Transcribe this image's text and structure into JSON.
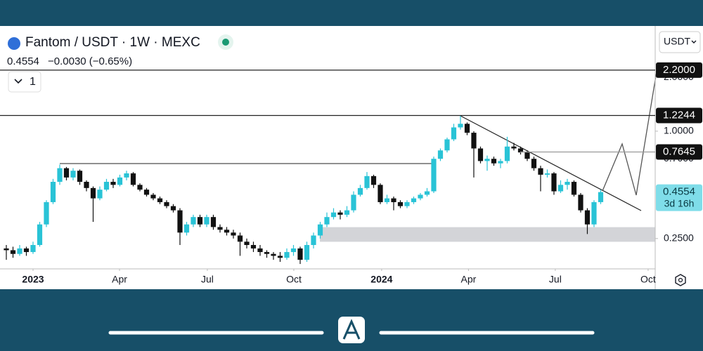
{
  "header": {
    "title": "Fantom / USDT · 1W · MEXC",
    "last": "0.4554",
    "change": "−0.0030 (−0.65%)",
    "button": "1",
    "currency": "USDT"
  },
  "chart_data": {
    "type": "candlestick",
    "open": [
      0.22,
      0.215,
      0.205,
      0.22,
      0.21,
      0.23,
      0.3,
      0.4,
      0.52,
      0.62,
      0.55,
      0.6,
      0.52,
      0.48,
      0.42,
      0.47,
      0.52,
      0.5,
      0.55,
      0.58,
      0.5,
      0.47,
      0.44,
      0.42,
      0.4,
      0.38,
      0.36,
      0.27,
      0.3,
      0.33,
      0.3,
      0.33,
      0.29,
      0.28,
      0.27,
      0.26,
      0.24,
      0.23,
      0.22,
      0.21,
      0.205,
      0.2,
      0.195,
      0.21,
      0.22,
      0.19,
      0.23,
      0.26,
      0.3,
      0.33,
      0.35,
      0.34,
      0.36,
      0.44,
      0.48,
      0.56,
      0.5,
      0.4,
      0.42,
      0.4,
      0.38,
      0.4,
      0.42,
      0.44,
      0.46,
      0.7,
      0.78,
      0.9,
      1.05,
      1.1,
      0.98,
      0.8,
      0.68,
      0.7,
      0.66,
      0.68,
      0.82,
      0.8,
      0.76,
      0.7,
      0.62,
      0.57,
      0.58,
      0.46,
      0.5,
      0.52,
      0.44,
      0.36,
      0.3,
      0.4
    ],
    "high": [
      0.23,
      0.225,
      0.23,
      0.225,
      0.24,
      0.31,
      0.41,
      0.54,
      0.65,
      0.63,
      0.62,
      0.61,
      0.53,
      0.49,
      0.49,
      0.54,
      0.54,
      0.57,
      0.6,
      0.59,
      0.51,
      0.48,
      0.45,
      0.43,
      0.41,
      0.39,
      0.37,
      0.31,
      0.34,
      0.34,
      0.34,
      0.34,
      0.3,
      0.29,
      0.28,
      0.27,
      0.25,
      0.24,
      0.23,
      0.215,
      0.21,
      0.21,
      0.22,
      0.23,
      0.225,
      0.24,
      0.27,
      0.31,
      0.35,
      0.37,
      0.36,
      0.38,
      0.46,
      0.5,
      0.59,
      0.57,
      0.51,
      0.44,
      0.43,
      0.41,
      0.41,
      0.43,
      0.45,
      0.48,
      0.72,
      0.8,
      0.92,
      1.1,
      1.22,
      1.12,
      1.0,
      0.82,
      0.73,
      0.72,
      0.7,
      0.93,
      0.86,
      0.82,
      0.78,
      0.72,
      0.64,
      0.61,
      0.59,
      0.53,
      0.54,
      0.53,
      0.45,
      0.37,
      0.41,
      0.47
    ],
    "low": [
      0.19,
      0.195,
      0.2,
      0.2,
      0.205,
      0.225,
      0.29,
      0.39,
      0.5,
      0.53,
      0.53,
      0.5,
      0.46,
      0.31,
      0.41,
      0.46,
      0.48,
      0.49,
      0.53,
      0.49,
      0.46,
      0.43,
      0.41,
      0.39,
      0.37,
      0.35,
      0.23,
      0.26,
      0.29,
      0.29,
      0.29,
      0.28,
      0.27,
      0.26,
      0.25,
      0.2,
      0.22,
      0.21,
      0.2,
      0.195,
      0.19,
      0.185,
      0.19,
      0.2,
      0.18,
      0.185,
      0.22,
      0.25,
      0.29,
      0.32,
      0.32,
      0.33,
      0.35,
      0.43,
      0.47,
      0.48,
      0.39,
      0.39,
      0.36,
      0.37,
      0.37,
      0.39,
      0.41,
      0.43,
      0.45,
      0.68,
      0.76,
      0.88,
      1.02,
      0.95,
      0.55,
      0.66,
      0.6,
      0.64,
      0.62,
      0.66,
      0.78,
      0.74,
      0.68,
      0.6,
      0.46,
      0.55,
      0.44,
      0.45,
      0.47,
      0.43,
      0.35,
      0.265,
      0.29,
      0.39
    ],
    "close": [
      0.215,
      0.205,
      0.22,
      0.21,
      0.23,
      0.3,
      0.4,
      0.52,
      0.62,
      0.55,
      0.6,
      0.52,
      0.48,
      0.42,
      0.47,
      0.52,
      0.5,
      0.55,
      0.58,
      0.5,
      0.47,
      0.44,
      0.42,
      0.4,
      0.38,
      0.36,
      0.27,
      0.3,
      0.33,
      0.3,
      0.33,
      0.29,
      0.28,
      0.27,
      0.26,
      0.24,
      0.23,
      0.22,
      0.21,
      0.205,
      0.2,
      0.195,
      0.21,
      0.22,
      0.19,
      0.23,
      0.26,
      0.3,
      0.33,
      0.35,
      0.34,
      0.36,
      0.44,
      0.48,
      0.56,
      0.5,
      0.4,
      0.42,
      0.4,
      0.38,
      0.4,
      0.42,
      0.44,
      0.46,
      0.7,
      0.78,
      0.9,
      1.05,
      1.1,
      0.98,
      0.8,
      0.68,
      0.7,
      0.66,
      0.68,
      0.82,
      0.8,
      0.76,
      0.7,
      0.62,
      0.57,
      0.58,
      0.46,
      0.5,
      0.52,
      0.44,
      0.36,
      0.3,
      0.4,
      0.4554
    ],
    "up_color": "#29c3d6",
    "down_color": "#111111",
    "log_scale": true,
    "ylim": [
      0.169,
      3.89
    ],
    "yticks": [
      {
        "value": 2.0,
        "label": "2.0000"
      },
      {
        "value": 1.0,
        "label": "1.0000"
      },
      {
        "value": 0.7,
        "label": "0.7000"
      },
      {
        "value": 0.25,
        "label": "0.2500"
      }
    ],
    "xlim": [
      -0.947,
      97.16
    ],
    "xticks": [
      {
        "value": 4,
        "label": "2023"
      },
      {
        "value": 16.95,
        "label": "Apr"
      },
      {
        "value": 30.1,
        "label": "Jul"
      },
      {
        "value": 43.05,
        "label": "Oct"
      },
      {
        "value": 56.2,
        "label": "2024"
      },
      {
        "value": 69.2,
        "label": "Apr"
      },
      {
        "value": 82.2,
        "label": "Jul"
      },
      {
        "value": 96.1,
        "label": "Oct"
      }
    ],
    "levels": [
      {
        "value": 2.2,
        "label": "2.2000"
      },
      {
        "value": 1.2244,
        "label": "1.2244"
      },
      {
        "value": 0.7645,
        "label": "0.7645"
      }
    ],
    "last_price": {
      "value": 0.4554,
      "label": "0.4554"
    },
    "countdown": "3d 16h"
  }
}
